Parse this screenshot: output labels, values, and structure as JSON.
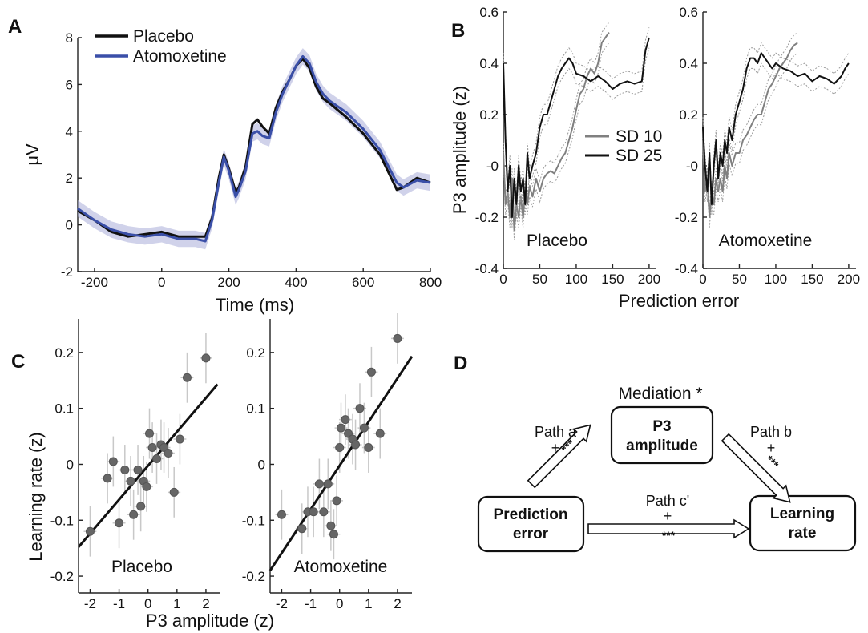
{
  "panels": {
    "a": {
      "label": "A",
      "chart_data": {
        "type": "line",
        "xlabel": "Time (ms)",
        "ylabel": "μV",
        "xlim": [
          -250,
          800
        ],
        "ylim": [
          -2,
          8
        ],
        "xticks": [
          -200,
          0,
          200,
          400,
          600,
          800
        ],
        "yticks": [
          -2,
          0,
          2,
          4,
          6,
          8
        ],
        "legend": "top-left",
        "series": [
          {
            "name": "Placebo",
            "color": "#111111",
            "x": [
              -250,
              -200,
              -150,
              -100,
              -50,
              0,
              50,
              100,
              130,
              150,
              170,
              185,
              200,
              220,
              230,
              250,
              270,
              285,
              300,
              320,
              340,
              360,
              380,
              400,
              420,
              440,
              460,
              480,
              500,
              550,
              600,
              650,
              700,
              720,
              760,
              800
            ],
            "y": [
              0.6,
              0.2,
              -0.3,
              -0.5,
              -0.4,
              -0.3,
              -0.5,
              -0.5,
              -0.5,
              0.3,
              2.0,
              3.0,
              2.4,
              1.4,
              1.6,
              2.5,
              4.3,
              4.5,
              4.2,
              3.9,
              5.0,
              5.7,
              6.2,
              6.8,
              7.1,
              6.7,
              5.9,
              5.4,
              5.2,
              4.6,
              3.9,
              3.0,
              1.5,
              1.6,
              2.0,
              1.8
            ]
          },
          {
            "name": "Atomoxetine",
            "color": "#3a4fa8",
            "x": [
              -250,
              -200,
              -150,
              -100,
              -50,
              0,
              50,
              100,
              130,
              150,
              170,
              185,
              200,
              220,
              230,
              250,
              270,
              285,
              300,
              320,
              340,
              360,
              380,
              400,
              420,
              440,
              460,
              480,
              500,
              550,
              600,
              650,
              700,
              720,
              760,
              800
            ],
            "y": [
              0.7,
              0.2,
              -0.2,
              -0.4,
              -0.5,
              -0.4,
              -0.6,
              -0.6,
              -0.7,
              0.2,
              1.8,
              2.9,
              2.3,
              1.2,
              1.5,
              2.3,
              3.9,
              4.0,
              3.8,
              3.7,
              4.8,
              5.6,
              6.2,
              6.8,
              7.2,
              6.9,
              6.1,
              5.6,
              5.3,
              4.8,
              4.1,
              3.2,
              1.8,
              1.6,
              1.9,
              1.8
            ]
          }
        ]
      }
    },
    "b": {
      "label": "B",
      "chart_data": [
        {
          "type": "line",
          "panel_title": "Placebo",
          "xlabel": "Prediction error",
          "ylabel": "P3 amplitude (z)",
          "xlim": [
            0,
            210
          ],
          "ylim": [
            -0.4,
            0.6
          ],
          "xticks": [
            0,
            50,
            100,
            150,
            200
          ],
          "yticks": [
            -0.4,
            -0.2,
            0,
            0.2,
            0.4,
            0.6
          ],
          "ytick_labels": [
            "-0.4",
            "-0.2",
            "-0",
            "0.2",
            "0.4",
            "0.6"
          ],
          "series": [
            {
              "name": "SD 10",
              "color": "#808080",
              "x": [
                0,
                3,
                6,
                9,
                12,
                15,
                18,
                21,
                24,
                27,
                30,
                33,
                36,
                40,
                45,
                50,
                55,
                60,
                65,
                70,
                75,
                80,
                85,
                90,
                95,
                100,
                105,
                110,
                115,
                120,
                125,
                130,
                135,
                140,
                145
              ],
              "y": [
                0.05,
                -0.15,
                -0.1,
                -0.2,
                -0.05,
                -0.25,
                -0.15,
                -0.2,
                -0.12,
                -0.2,
                -0.1,
                -0.15,
                -0.08,
                -0.12,
                -0.05,
                -0.1,
                -0.05,
                -0.03,
                -0.02,
                -0.03,
                0.0,
                0.03,
                0.05,
                0.1,
                0.15,
                0.22,
                0.28,
                0.3,
                0.35,
                0.38,
                0.36,
                0.4,
                0.48,
                0.5,
                0.52
              ]
            },
            {
              "name": "SD 25",
              "color": "#111111",
              "x": [
                0,
                3,
                6,
                9,
                12,
                15,
                18,
                21,
                24,
                27,
                30,
                33,
                36,
                40,
                45,
                50,
                55,
                60,
                65,
                70,
                75,
                80,
                85,
                90,
                95,
                100,
                110,
                120,
                130,
                140,
                150,
                160,
                170,
                180,
                190,
                195,
                200
              ],
              "y": [
                0.4,
                0.1,
                -0.1,
                0.0,
                -0.2,
                -0.05,
                -0.15,
                0.0,
                -0.1,
                -0.05,
                -0.15,
                0.05,
                -0.05,
                0.0,
                0.05,
                0.15,
                0.2,
                0.2,
                0.25,
                0.3,
                0.35,
                0.38,
                0.4,
                0.42,
                0.4,
                0.36,
                0.35,
                0.33,
                0.35,
                0.33,
                0.3,
                0.32,
                0.33,
                0.32,
                0.33,
                0.45,
                0.5
              ]
            }
          ]
        },
        {
          "type": "line",
          "panel_title": "Atomoxetine",
          "xlim": [
            0,
            210
          ],
          "ylim": [
            -0.4,
            0.6
          ],
          "xticks": [
            0,
            50,
            100,
            150,
            200
          ],
          "yticks": [
            -0.4,
            -0.2,
            0,
            0.2,
            0.4,
            0.6
          ],
          "ytick_labels": [
            "-0.4",
            "-0.2",
            "-0",
            "0.2",
            "0.4",
            "0.6"
          ],
          "series": [
            {
              "name": "SD 10",
              "color": "#808080",
              "x": [
                0,
                3,
                6,
                9,
                12,
                15,
                18,
                21,
                24,
                27,
                30,
                33,
                36,
                40,
                45,
                50,
                55,
                60,
                65,
                70,
                75,
                80,
                85,
                90,
                95,
                100,
                105,
                110,
                115,
                120,
                125,
                130
              ],
              "y": [
                0.1,
                -0.1,
                -0.05,
                -0.2,
                -0.1,
                -0.15,
                -0.05,
                -0.1,
                -0.05,
                -0.1,
                0.0,
                -0.05,
                0.05,
                0.0,
                0.05,
                0.05,
                0.1,
                0.12,
                0.15,
                0.18,
                0.2,
                0.2,
                0.25,
                0.3,
                0.32,
                0.35,
                0.38,
                0.4,
                0.42,
                0.45,
                0.47,
                0.48
              ]
            },
            {
              "name": "SD 25",
              "color": "#111111",
              "x": [
                0,
                3,
                6,
                9,
                12,
                15,
                18,
                21,
                24,
                27,
                30,
                33,
                36,
                40,
                45,
                50,
                55,
                60,
                65,
                70,
                75,
                80,
                85,
                90,
                95,
                100,
                110,
                120,
                130,
                140,
                150,
                160,
                170,
                180,
                190,
                195,
                200
              ],
              "y": [
                0.15,
                0.0,
                -0.1,
                0.05,
                -0.15,
                0.0,
                0.1,
                -0.05,
                0.05,
                0.0,
                0.1,
                0.05,
                0.15,
                0.1,
                0.2,
                0.25,
                0.3,
                0.38,
                0.42,
                0.42,
                0.4,
                0.44,
                0.42,
                0.4,
                0.38,
                0.4,
                0.38,
                0.37,
                0.35,
                0.36,
                0.33,
                0.35,
                0.34,
                0.32,
                0.35,
                0.38,
                0.4
              ]
            }
          ]
        }
      ]
    },
    "c": {
      "label": "C",
      "chart_data": [
        {
          "type": "scatter",
          "panel_title": "Placebo",
          "ylabel": "Learning rate (z)",
          "xlabel": "P3 amplitude (z)",
          "xlim": [
            -2.4,
            2.5
          ],
          "ylim": [
            -0.23,
            0.26
          ],
          "xticks": [
            -2,
            -1,
            0,
            1,
            2
          ],
          "yticks": [
            -0.2,
            -0.1,
            0,
            0.1,
            0.2
          ],
          "x": [
            -2.0,
            -1.4,
            -1.2,
            -1.0,
            -0.8,
            -0.6,
            -0.5,
            -0.35,
            -0.25,
            -0.15,
            -0.05,
            0.05,
            0.15,
            0.3,
            0.45,
            0.55,
            0.7,
            0.9,
            1.1,
            1.35,
            2.0
          ],
          "y": [
            -0.12,
            -0.025,
            0.005,
            -0.105,
            -0.01,
            -0.03,
            -0.09,
            -0.01,
            -0.075,
            -0.03,
            -0.04,
            0.055,
            0.03,
            0.01,
            0.035,
            0.03,
            0.02,
            -0.05,
            0.045,
            0.155,
            0.19
          ],
          "fit": {
            "x": [
              -2.4,
              2.4
            ],
            "y": [
              -0.148,
              0.143
            ]
          }
        },
        {
          "type": "scatter",
          "panel_title": "Atomoxetine",
          "xlim": [
            -2.4,
            2.5
          ],
          "ylim": [
            -0.23,
            0.26
          ],
          "xticks": [
            -2,
            -1,
            0,
            1,
            2
          ],
          "yticks": [
            -0.2,
            -0.1,
            0,
            0.1,
            0.2
          ],
          "x": [
            -2.0,
            -1.3,
            -1.1,
            -0.9,
            -0.7,
            -0.55,
            -0.4,
            -0.3,
            -0.2,
            -0.1,
            0.0,
            0.05,
            0.2,
            0.3,
            0.45,
            0.55,
            0.7,
            0.85,
            1.0,
            1.1,
            1.4,
            2.0
          ],
          "y": [
            -0.09,
            -0.115,
            -0.085,
            -0.085,
            -0.035,
            -0.085,
            -0.035,
            -0.11,
            -0.125,
            -0.065,
            0.03,
            0.065,
            0.08,
            0.055,
            0.045,
            0.035,
            0.1,
            0.065,
            0.03,
            0.165,
            0.055,
            0.225
          ],
          "fit": {
            "x": [
              -2.4,
              2.5
            ],
            "y": [
              -0.19,
              0.193
            ]
          }
        }
      ]
    },
    "d": {
      "label": "D",
      "mediation_label": "Mediation *",
      "p3_box": [
        "P3",
        "amplitude"
      ],
      "pe_box": [
        "Prediction",
        "error"
      ],
      "lr_box": [
        "Learning",
        "rate"
      ],
      "path_a": [
        "Path a",
        "+"
      ],
      "path_b": [
        "Path b",
        "+"
      ],
      "path_c": [
        "Path c'",
        "+"
      ],
      "stars": "***"
    }
  }
}
